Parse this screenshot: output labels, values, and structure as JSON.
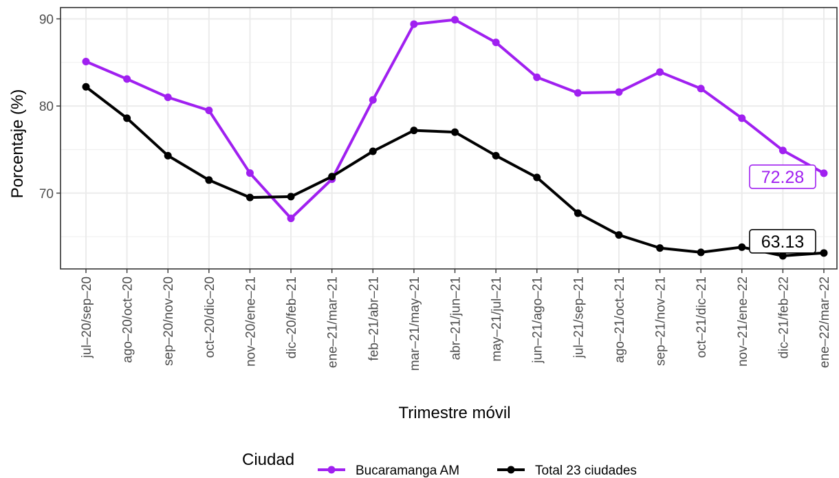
{
  "chart_data": {
    "type": "line",
    "title": "",
    "xlabel": "Trimestre móvil",
    "ylabel": "Porcentaje (%)",
    "ylim": [
      61.3,
      91.3
    ],
    "yticks": [
      70,
      80,
      90
    ],
    "grid": true,
    "legend": {
      "title": "Ciudad",
      "position": "bottom"
    },
    "categories": [
      "jul–20/sep–20",
      "ago–20/oct–20",
      "sep–20/nov–20",
      "oct–20/dic–20",
      "nov–20/ene–21",
      "dic–20/feb–21",
      "ene–21/mar–21",
      "feb–21/abr–21",
      "mar–21/may–21",
      "abr–21/jun–21",
      "may–21/jul–21",
      "jun–21/ago–21",
      "jul–21/sep–21",
      "ago–21/oct–21",
      "sep–21/nov–21",
      "oct–21/dic–21",
      "nov–21/ene–22",
      "dic–21/feb–22",
      "ene–22/mar–22"
    ],
    "series": [
      {
        "name": "Bucaramanga AM",
        "color": "#a020f0",
        "values": [
          85.1,
          83.1,
          81.0,
          79.5,
          72.3,
          67.1,
          71.6,
          80.7,
          89.4,
          89.9,
          87.3,
          83.3,
          81.5,
          81.6,
          83.9,
          82.0,
          78.6,
          74.9,
          72.28
        ],
        "end_label": "72.28"
      },
      {
        "name": "Total 23 ciudades",
        "color": "#000000",
        "values": [
          82.2,
          78.6,
          74.3,
          71.5,
          69.5,
          69.6,
          71.9,
          74.8,
          77.2,
          77.0,
          74.3,
          71.8,
          67.7,
          65.2,
          63.7,
          63.2,
          63.8,
          62.8,
          63.13
        ],
        "end_label": "63.13"
      }
    ]
  }
}
